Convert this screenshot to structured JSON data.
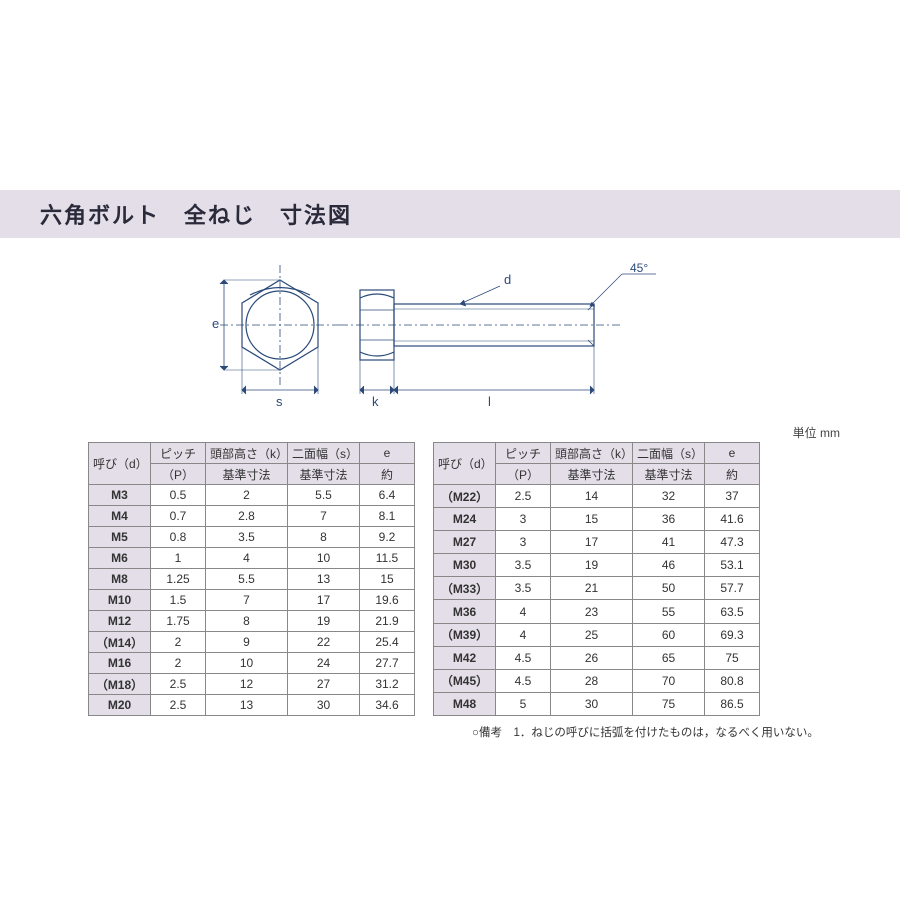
{
  "title": "六角ボルト　全ねじ　寸法図",
  "unit_label": "単位 mm",
  "footnote": "○備考　1．ねじの呼びに括弧を付けたものは，なるべく用いない。",
  "columns": {
    "name_top": "呼び（d）",
    "pitch_top": "ピッチ",
    "pitch_bot": "（P）",
    "k_top": "頭部高さ（k）",
    "k_bot": "基準寸法",
    "s_top": "二面幅（s）",
    "s_bot": "基準寸法",
    "e_top": "e",
    "e_bot": "約"
  },
  "table_left": [
    {
      "name": "M3",
      "p": "0.5",
      "k": "2",
      "s": "5.5",
      "e": "6.4"
    },
    {
      "name": "M4",
      "p": "0.7",
      "k": "2.8",
      "s": "7",
      "e": "8.1"
    },
    {
      "name": "M5",
      "p": "0.8",
      "k": "3.5",
      "s": "8",
      "e": "9.2"
    },
    {
      "name": "M6",
      "p": "1",
      "k": "4",
      "s": "10",
      "e": "11.5"
    },
    {
      "name": "M8",
      "p": "1.25",
      "k": "5.5",
      "s": "13",
      "e": "15"
    },
    {
      "name": "M10",
      "p": "1.5",
      "k": "7",
      "s": "17",
      "e": "19.6"
    },
    {
      "name": "M12",
      "p": "1.75",
      "k": "8",
      "s": "19",
      "e": "21.9"
    },
    {
      "name": "（M14）",
      "p": "2",
      "k": "9",
      "s": "22",
      "e": "25.4"
    },
    {
      "name": "M16",
      "p": "2",
      "k": "10",
      "s": "24",
      "e": "27.7"
    },
    {
      "name": "（M18）",
      "p": "2.5",
      "k": "12",
      "s": "27",
      "e": "31.2"
    },
    {
      "name": "M20",
      "p": "2.5",
      "k": "13",
      "s": "30",
      "e": "34.6"
    }
  ],
  "table_right": [
    {
      "name": "（M22）",
      "p": "2.5",
      "k": "14",
      "s": "32",
      "e": "37"
    },
    {
      "name": "M24",
      "p": "3",
      "k": "15",
      "s": "36",
      "e": "41.6"
    },
    {
      "name": "M27",
      "p": "3",
      "k": "17",
      "s": "41",
      "e": "47.3"
    },
    {
      "name": "M30",
      "p": "3.5",
      "k": "19",
      "s": "46",
      "e": "53.1"
    },
    {
      "name": "（M33）",
      "p": "3.5",
      "k": "21",
      "s": "50",
      "e": "57.7"
    },
    {
      "name": "M36",
      "p": "4",
      "k": "23",
      "s": "55",
      "e": "63.5"
    },
    {
      "name": "（M39）",
      "p": "4",
      "k": "25",
      "s": "60",
      "e": "69.3"
    },
    {
      "name": "M42",
      "p": "4.5",
      "k": "26",
      "s": "65",
      "e": "75"
    },
    {
      "name": "（M45）",
      "p": "4.5",
      "k": "28",
      "s": "70",
      "e": "80.8"
    },
    {
      "name": "M48",
      "p": "5",
      "k": "30",
      "s": "75",
      "e": "86.5"
    }
  ],
  "diagram": {
    "stroke": "#2b4a7a",
    "label_e": "e",
    "label_s": "s",
    "label_k": "k",
    "label_l": "l",
    "label_d": "d",
    "label_angle": "45°",
    "centerline_dash": "8 3 2 3"
  }
}
